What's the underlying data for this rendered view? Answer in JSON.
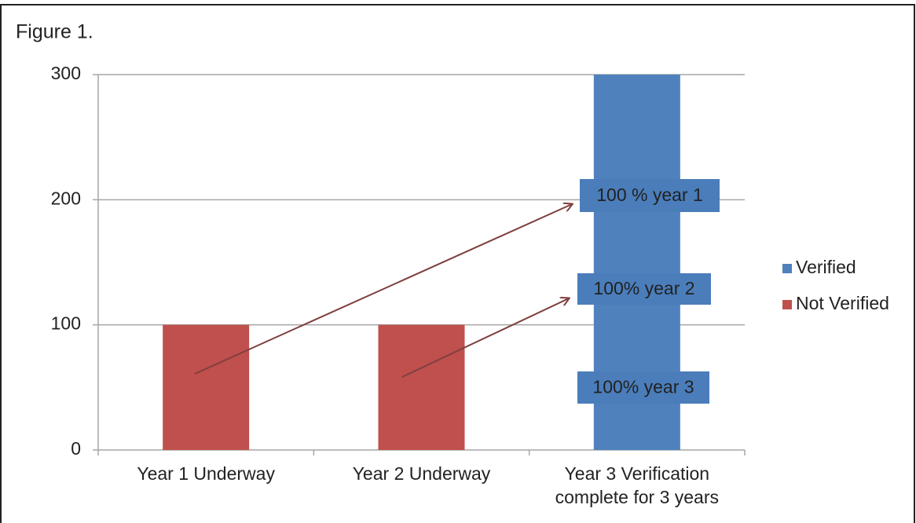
{
  "chart_data": {
    "type": "stacked-bar",
    "title": "Figure 1.",
    "categories": [
      "Year 1 Underway",
      "Year 2 Underway",
      "Year 3 Verification complete for 3 years"
    ],
    "series": [
      {
        "name": "Verified",
        "color": "#4f81bd",
        "values": [
          0,
          0,
          300
        ]
      },
      {
        "name": "Not Verified",
        "color": "#c0504d",
        "values": [
          100,
          100,
          0
        ]
      }
    ],
    "ylim": [
      0,
      300
    ],
    "yticks": [
      0,
      100,
      200,
      300
    ],
    "grid": true,
    "legend": "right",
    "annotations": [
      "100 % year 1",
      "100% year 2",
      "100% year 3"
    ]
  }
}
